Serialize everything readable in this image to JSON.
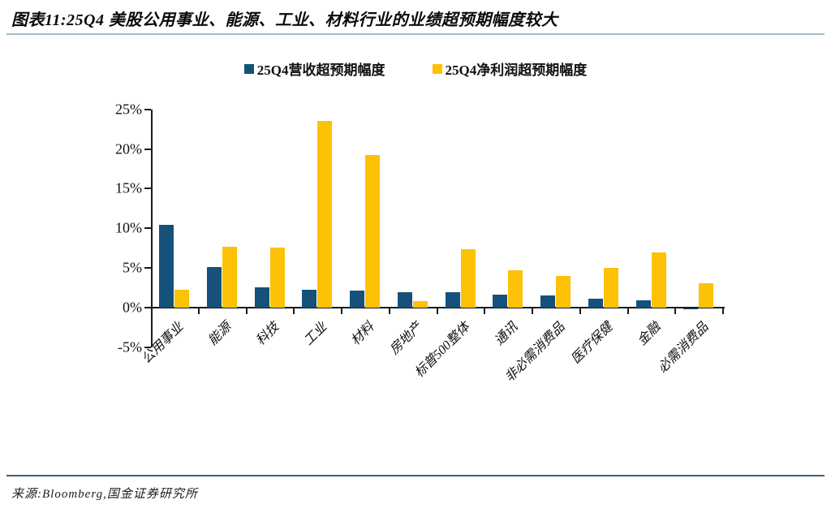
{
  "header": {
    "title": "图表11:25Q4 美股公用事业、能源、工业、材料行业的业绩超预期幅度较大"
  },
  "footer": {
    "source": "来源:Bloomberg,国金证券研究所"
  },
  "colors": {
    "revenue_bar": "#15517b",
    "profit_bar": "#fdc105",
    "title_rule": "#a3becb",
    "source_rule": "#39637e",
    "axis": "#1a1a1a"
  },
  "chart_data": {
    "type": "bar",
    "title": "",
    "xlabel": "",
    "ylabel": "",
    "ylim": [
      -5,
      25
    ],
    "y_ticks": [
      "25%",
      "20%",
      "15%",
      "10%",
      "5%",
      "0%",
      "-5%"
    ],
    "grid": false,
    "legend_position": "top",
    "categories": [
      "公用事业",
      "能源",
      "科技",
      "工业",
      "材料",
      "房地产",
      "标普500整体",
      "通讯",
      "非必需消费品",
      "医疗保健",
      "金融",
      "必需消费品"
    ],
    "series": [
      {
        "name": "25Q4营收超预期幅度",
        "color": "#15517b",
        "values": [
          10.4,
          5.1,
          2.6,
          2.3,
          2.1,
          1.9,
          1.9,
          1.6,
          1.5,
          1.1,
          0.9,
          -0.15
        ]
      },
      {
        "name": "25Q4净利润超预期幅度",
        "color": "#fdc105",
        "values": [
          2.3,
          7.7,
          7.6,
          23.5,
          19.2,
          0.8,
          7.4,
          4.7,
          4.0,
          5.0,
          7.0,
          3.1
        ]
      }
    ]
  }
}
